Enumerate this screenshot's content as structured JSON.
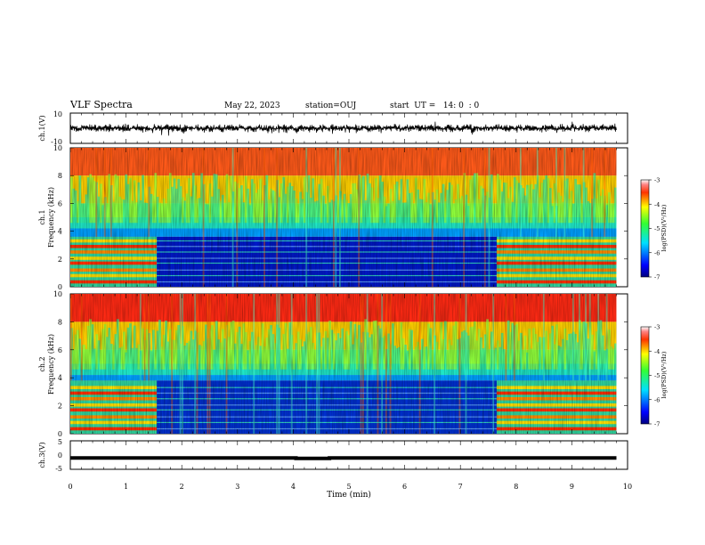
{
  "header": {
    "title": "VLF Spectra",
    "date": "May 22, 2023",
    "station": "station=OUJ",
    "start": "start  UT =   14: 0  : 0"
  },
  "chart_data": [
    {
      "type": "line",
      "panel": "ch1-waveform",
      "ylabel": "ch.1(V)",
      "ylim": [
        -10,
        10
      ],
      "yticks": [
        "10",
        "-10"
      ],
      "xlim": [
        0,
        10
      ],
      "data_end_min": 9.8,
      "series": [
        {
          "values_summary": "noisy waveform centered near 0 V, amplitude about ±3 V"
        }
      ]
    },
    {
      "type": "heatmap",
      "panel": "ch1-spectrogram",
      "ylabel": "Frequency (kHz)",
      "channel_label": "ch.1",
      "ylim": [
        0,
        10
      ],
      "yticks": [
        "0",
        "2",
        "4",
        "6",
        "8",
        "10"
      ],
      "xlim": [
        0,
        10
      ],
      "data_end_min": 9.8,
      "colorbar": {
        "label": "log(PSD)(V²/Hz)",
        "range": [
          -7,
          -3
        ],
        "ticks": [
          "-3",
          "-4",
          "-5",
          "-6",
          "-7"
        ]
      },
      "high_activity_intervals_min": [
        [
          0,
          1.55
        ],
        [
          7.65,
          8.3
        ],
        [
          8.3,
          9.8
        ]
      ],
      "low_band_kHz": [
        0,
        3.6
      ]
    },
    {
      "type": "heatmap",
      "panel": "ch2-spectrogram",
      "ylabel": "Frequency (kHz)",
      "channel_label": "ch.2",
      "ylim": [
        0,
        10
      ],
      "yticks": [
        "0",
        "2",
        "4",
        "6",
        "8",
        "10"
      ],
      "xlim": [
        0,
        10
      ],
      "data_end_min": 9.8,
      "colorbar": {
        "label": "log(PSD)(V²/Hz)",
        "range": [
          -7,
          -3
        ],
        "ticks": [
          "-3",
          "-4",
          "-5",
          "-6",
          "-7"
        ]
      },
      "high_activity_intervals_min": [
        [
          0,
          1.55
        ],
        [
          7.65,
          8.3
        ],
        [
          8.3,
          9.8
        ]
      ],
      "low_band_kHz": [
        0,
        3.8
      ]
    },
    {
      "type": "line",
      "panel": "ch3-waveform",
      "ylabel": "ch.3(V)",
      "ylim": [
        -5,
        5
      ],
      "yticks": [
        "5",
        "0",
        "-5"
      ],
      "xlim": [
        0,
        10
      ],
      "xlabel": "Time  (min)",
      "xticks": [
        "0",
        "1",
        "2",
        "3",
        "4",
        "5",
        "6",
        "7",
        "8",
        "9",
        "10"
      ],
      "data_end_min": 9.8,
      "series": [
        {
          "x": [
            0,
            4.05,
            4.05,
            4.65,
            4.65,
            9.8
          ],
          "y": [
            -1.0,
            -1.0,
            -1.2,
            -1.2,
            -1.0,
            -1.0
          ]
        }
      ]
    }
  ]
}
